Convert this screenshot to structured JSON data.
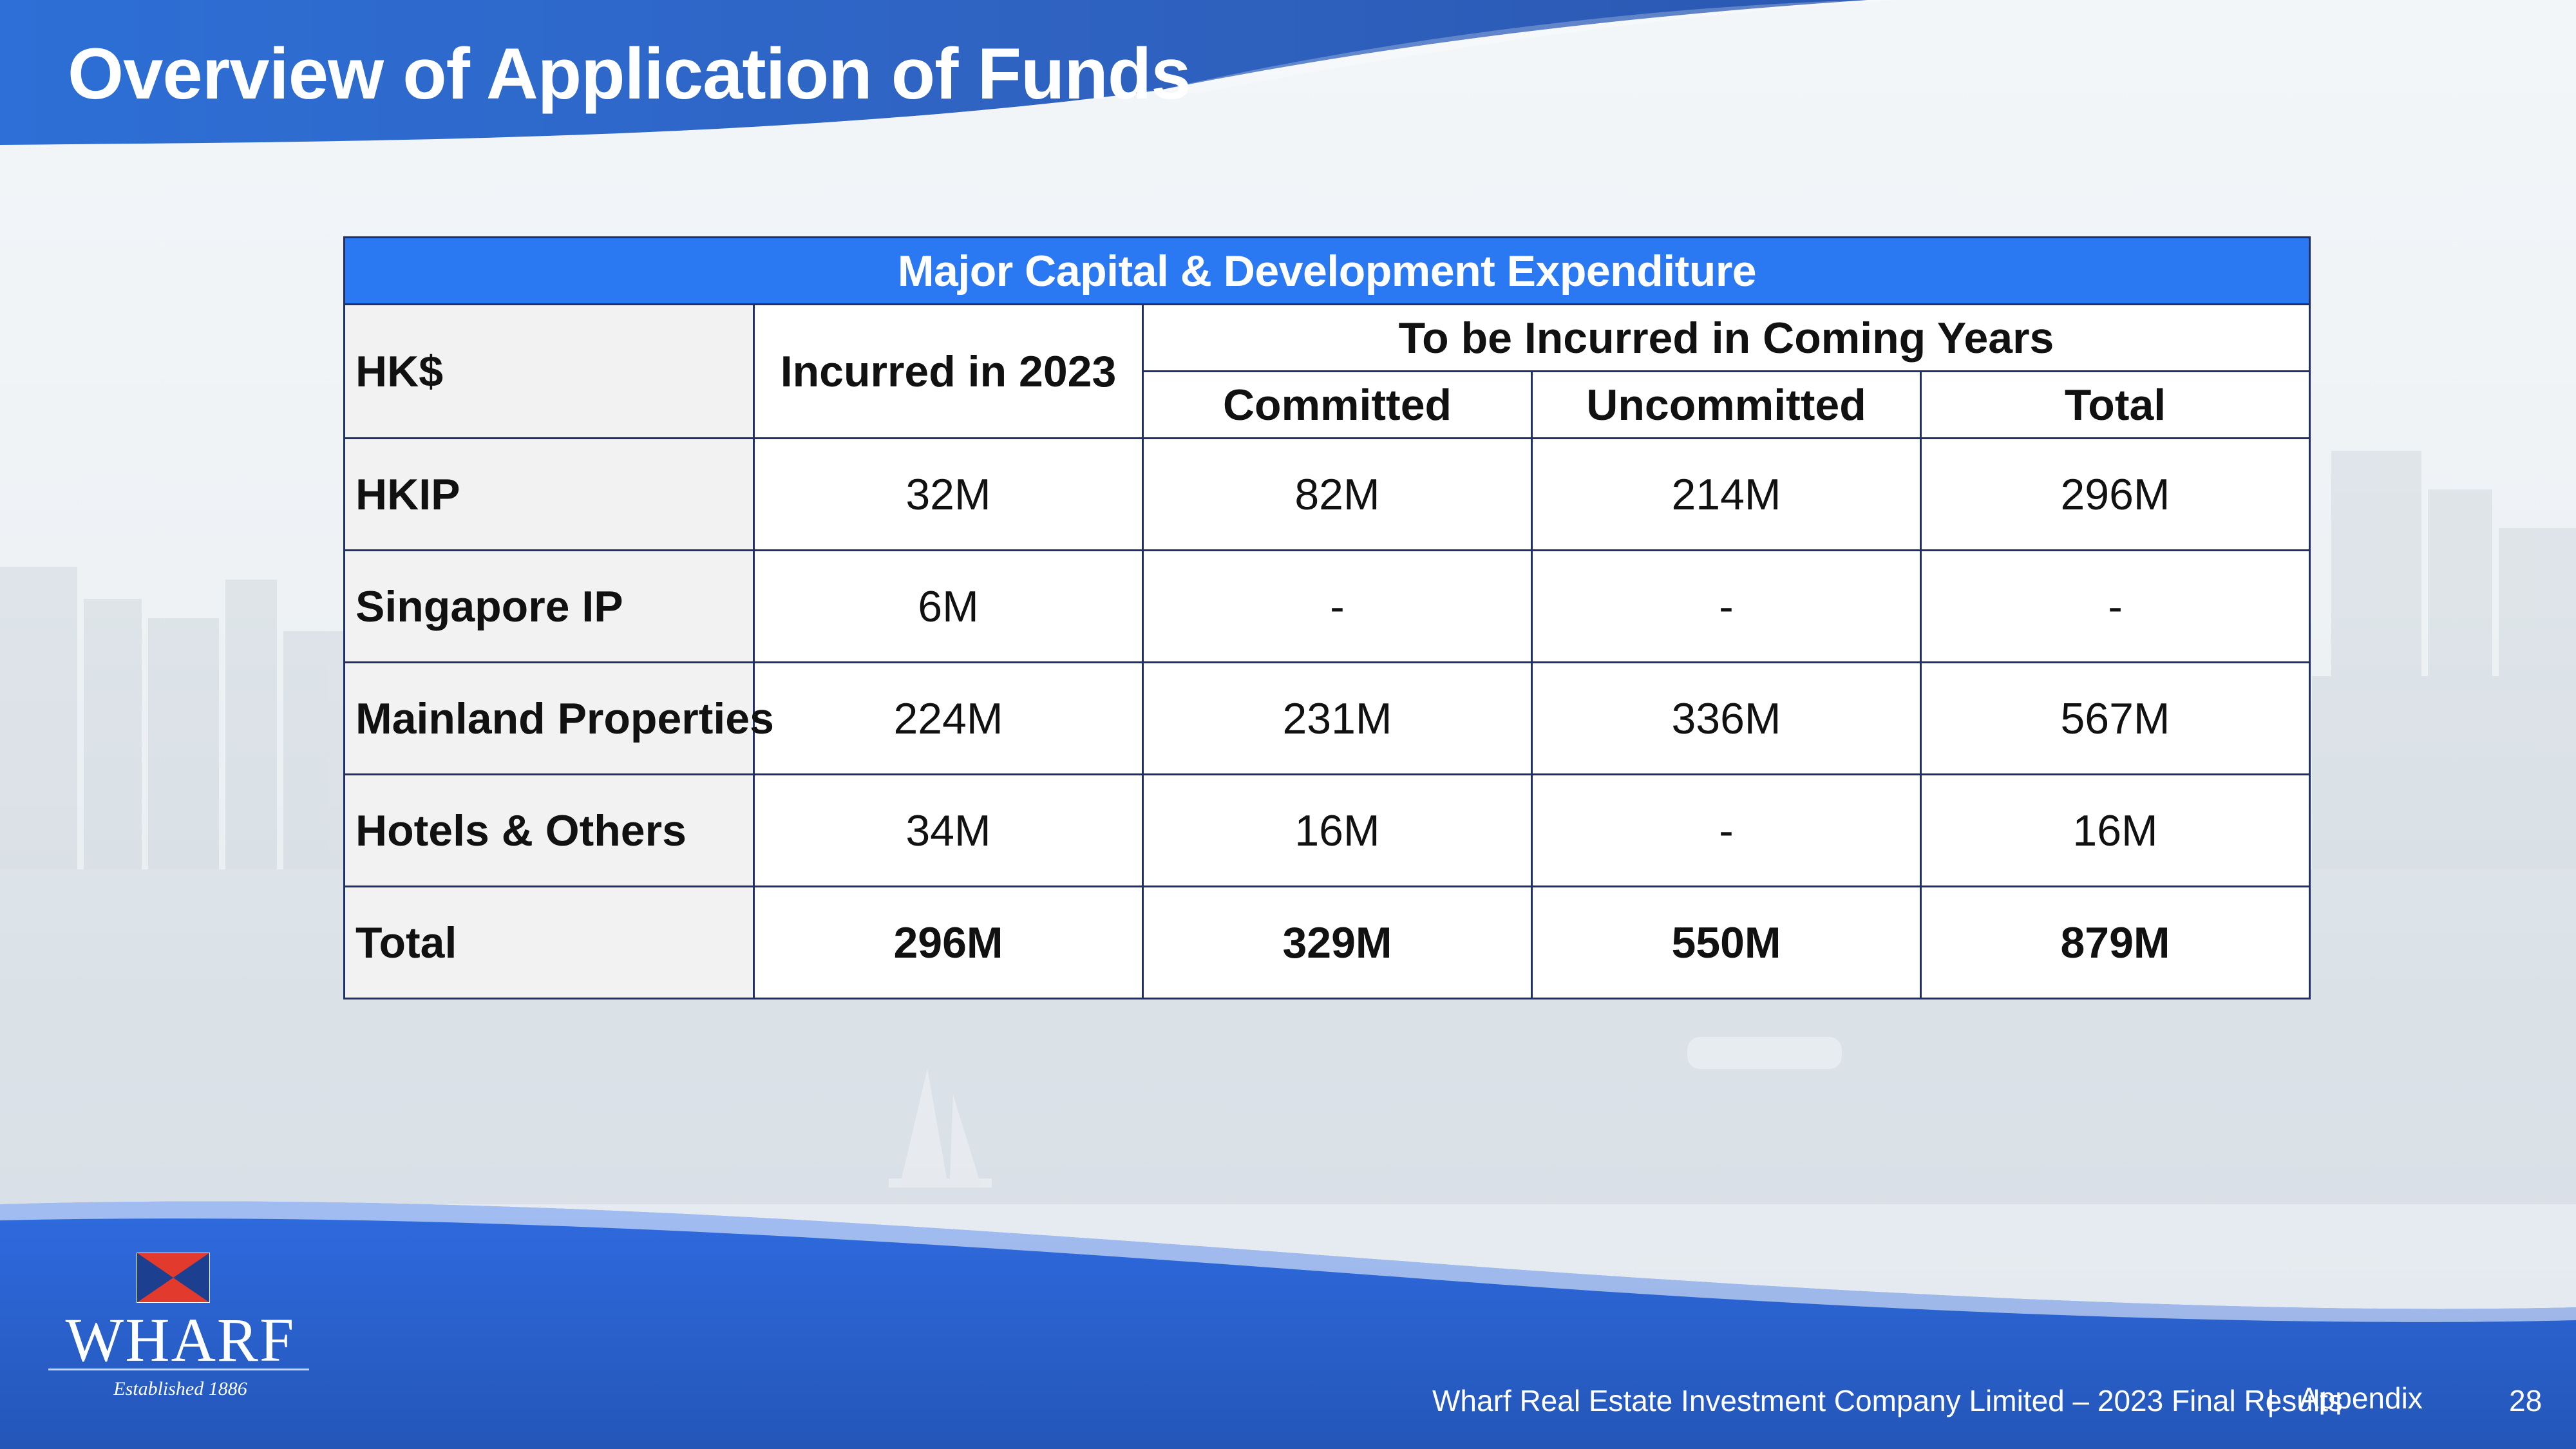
{
  "slide": {
    "title": "Overview of Application of Funds"
  },
  "table": {
    "banner": "Major Capital & Development Expenditure",
    "header_currency": "HK$",
    "header_incurred": "Incurred in 2023",
    "header_coming": "To be Incurred in Coming Years",
    "subheaders": [
      "Committed",
      "Uncommitted",
      "Total"
    ],
    "rows": [
      {
        "label": "HKIP",
        "incurred": "32M",
        "committed": "82M",
        "uncommitted": "214M",
        "total": "296M"
      },
      {
        "label": "Singapore IP",
        "incurred": "6M",
        "committed": "-",
        "uncommitted": "-",
        "total": "-"
      },
      {
        "label": "Mainland Properties",
        "incurred": "224M",
        "committed": "231M",
        "uncommitted": "336M",
        "total": "567M"
      },
      {
        "label": "Hotels & Others",
        "incurred": "34M",
        "committed": "16M",
        "uncommitted": "-",
        "total": "16M"
      }
    ],
    "total_row": {
      "label": "Total",
      "incurred": "296M",
      "committed": "329M",
      "uncommitted": "550M",
      "total": "879M"
    }
  },
  "logo": {
    "wordmark": "WHARF",
    "tagline": "Established 1886"
  },
  "footer": {
    "company": "Wharf Real Estate Investment Company Limited – 2023 Final Results",
    "separator": "|",
    "section": "Appendix",
    "page_number": "28"
  },
  "colors": {
    "header_band": "#2f64c4",
    "table_banner": "#2b78f3",
    "table_border": "#1f2f6b",
    "label_cell": "#f2f2f2",
    "footer_band": "#2556c0"
  }
}
